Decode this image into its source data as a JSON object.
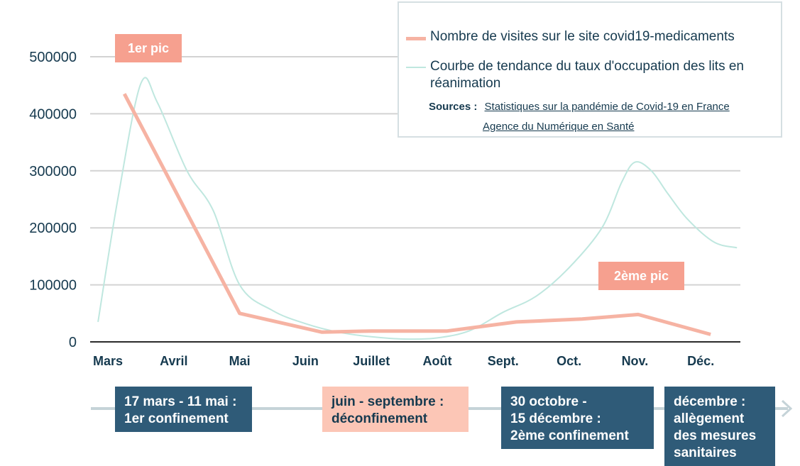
{
  "colors": {
    "visits": "#f6b3a3",
    "trend": "#bfe7df",
    "grid": "#d3d3d3",
    "axis": "#2b2b2b",
    "text": "#163a4f",
    "dark_box": "#2f5b78",
    "light_box": "#fcc6b6",
    "peak_box": "#f6a08f",
    "timeline": "#c5d3d8"
  },
  "chart_data": {
    "type": "line",
    "categories": [
      "Mars",
      "Avril",
      "Mai",
      "Juin",
      "Juillet",
      "Août",
      "Sept.",
      "Oct.",
      "Nov.",
      "Déc."
    ],
    "ylim": [
      0,
      500000
    ],
    "yticks": [
      "0",
      "100000",
      "200000",
      "300000",
      "400000",
      "500000"
    ],
    "grid": true,
    "legend_position": "top-right",
    "series": [
      {
        "name": "Nombre de visites sur le site covid19-medicaments",
        "x": [
          0.25,
          2.0,
          3.25,
          4.0,
          5.15,
          6.2,
          7.2,
          8.05,
          9.15
        ],
        "values": [
          435000,
          50000,
          17000,
          19000,
          19000,
          35000,
          40000,
          48000,
          13000
        ]
      },
      {
        "name": "Courbe de tendance du taux d'occupation des lits en réanimation",
        "x": [
          -0.15,
          0.15,
          0.5,
          0.75,
          1.2,
          1.6,
          2.0,
          2.5,
          3.0,
          3.5,
          4.0,
          4.5,
          5.0,
          5.5,
          6.0,
          6.5,
          7.0,
          7.5,
          7.8,
          8.0,
          8.25,
          8.5,
          8.8,
          9.2,
          9.55
        ],
        "values": [
          35000,
          250000,
          453000,
          420000,
          300000,
          230000,
          100000,
          55000,
          32000,
          17000,
          9000,
          5000,
          7000,
          20000,
          52000,
          80000,
          130000,
          200000,
          280000,
          315000,
          300000,
          260000,
          215000,
          175000,
          165000
        ]
      }
    ]
  },
  "legend": {
    "visits_label": "Nombre de visites sur le site covid19-medicaments",
    "trend_label": "Courbe de tendance du taux d'occupation des lits en réanimation",
    "sources_label": "Sources :",
    "source_1": "Statistiques sur la pandémie de Covid-19 en France",
    "source_2": "Agence du Numérique en Santé"
  },
  "annotations": {
    "peak1": "1er pic",
    "peak2": "2ème pic"
  },
  "timeline": [
    {
      "line1": "17 mars - 11 mai :",
      "line2": "1er confinement",
      "line3": "",
      "line4": ""
    },
    {
      "line1": "juin - septembre :",
      "line2": "déconfinement",
      "line3": "",
      "line4": ""
    },
    {
      "line1": "30 octobre -",
      "line2": "15 décembre :",
      "line3": "2ème confinement",
      "line4": ""
    },
    {
      "line1": "décembre :",
      "line2": "allègement",
      "line3": "des mesures",
      "line4": "sanitaires"
    }
  ]
}
